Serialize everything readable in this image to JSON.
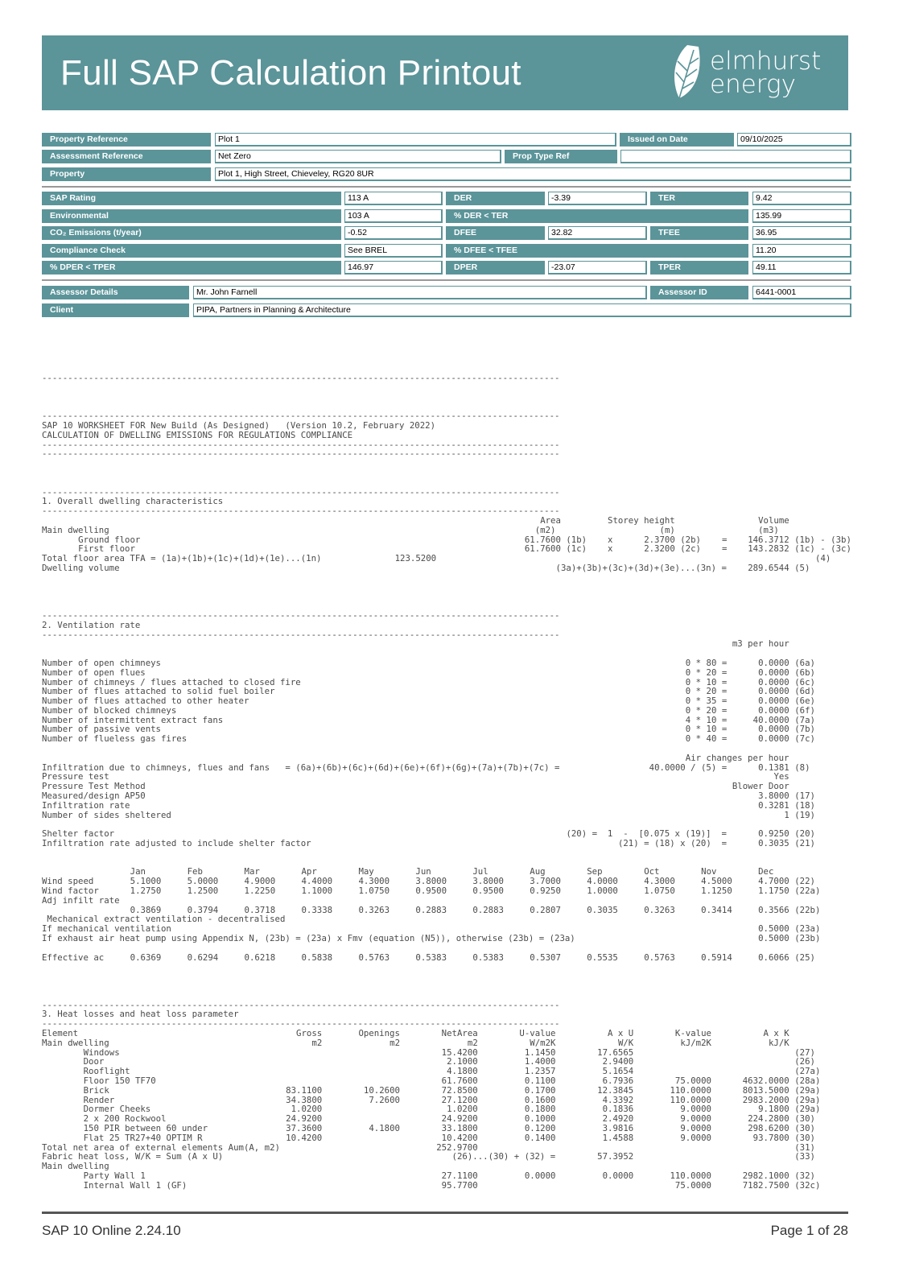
{
  "header": {
    "title": "Full SAP Calculation Printout",
    "logo_text_line1": "elmhurst",
    "logo_text_line2": "energy",
    "brand_color": "#5b9499"
  },
  "summary": {
    "property_reference_label": "Property Reference",
    "property_reference": "Plot 1",
    "issued_on_date_label": "Issued on Date",
    "issued_on_date": "09/10/2025",
    "assessment_reference_label": "Assessment Reference",
    "assessment_reference": "Net Zero",
    "prop_type_ref_label": "Prop Type Ref",
    "prop_type_ref": "",
    "property_label": "Property",
    "property": "Plot 1, High Street, Chieveley, RG20 8UR",
    "sap_rating_label": "SAP Rating",
    "sap_rating": "113 A",
    "der_label": "DER",
    "der": "-3.39",
    "ter_label": "TER",
    "ter": "9.42",
    "environmental_label": "Environmental",
    "environmental": "103 A",
    "pct_der_ter_label": "% DER < TER",
    "pct_der_ter": "135.99",
    "co2_label": "CO₂ Emissions (t/year)",
    "co2": "-0.52",
    "dfee_label": "DFEE",
    "dfee": "32.82",
    "tfee_label": "TFEE",
    "tfee": "36.95",
    "compliance_label": "Compliance Check",
    "compliance": "See BREL",
    "pct_dfee_tfee_label": "% DFEE < TFEE",
    "pct_dfee_tfee": "11.20",
    "pct_dper_tper_label": "% DPER < TPER",
    "pct_dper_tper": "146.97",
    "dper_label": "DPER",
    "dper": "-23.07",
    "tper_label": "TPER",
    "tper": "49.11",
    "assessor_details_label": "Assessor Details",
    "assessor_details": "Mr. John Farnell",
    "assessor_id_label": "Assessor ID",
    "assessor_id": "6441-0001",
    "client_label": "Client",
    "client": "PIPA, Partners in Planning & Architecture"
  },
  "worksheet": {
    "lines": [
      "----------------------------------------------------------------------------------------------------",
      "",
      "",
      "",
      "----------------------------------------------------------------------------------------------------",
      "SAP 10 WORKSHEET FOR New Build (As Designed)   (Version 10.2, February 2022)",
      "CALCULATION OF DWELLING EMISSIONS FOR REGULATIONS COMPLIANCE",
      "----------------------------------------------------------------------------------------------------",
      "----------------------------------------------------------------------------------------------------",
      "",
      "",
      "",
      "----------------------------------------------------------------------------------------------------",
      "1. Overall dwelling characteristics",
      "----------------------------------------------------------------------------------------------------",
      {
        "layout": "dimh",
        "cells": [
          "",
          "Area",
          "Storey height",
          "Volume"
        ]
      },
      {
        "layout": "dimu",
        "cells": [
          "Main dwelling",
          "(m2)",
          "(m)",
          "(m3)"
        ]
      },
      {
        "layout": "dim",
        "cells": [
          "Ground floor",
          "61.7600 (1b)",
          "x",
          "2.3700 (2b)",
          "=",
          "146.3712 (1b) - (3b)"
        ]
      },
      {
        "layout": "dim",
        "cells": [
          "First floor",
          "61.7600 (1c)",
          "x",
          "2.3200 (2c)",
          "=",
          "143.2832 (1c) - (3c)"
        ]
      },
      {
        "layout": "tfa",
        "cells": [
          "Total floor area TFA = (1a)+(1b)+(1c)+(1d)+(1e)...(1n)",
          "123.5200",
          "(4)"
        ]
      },
      {
        "layout": "dv",
        "cells": [
          "Dwelling volume",
          "(3a)+(3b)+(3c)+(3d)+(3e)...(3n) =",
          "289.6544 (5)"
        ]
      },
      "",
      "",
      "",
      "",
      "----------------------------------------------------------------------------------------------------",
      "2. Ventilation rate",
      "----------------------------------------------------------------------------------------------------",
      {
        "layout": "vent",
        "cells": [
          "",
          "",
          "m3 per hour",
          ""
        ]
      },
      "",
      {
        "layout": "vent",
        "cells": [
          "Number of open chimneys",
          "0 * 80 =",
          "0.0000",
          "(6a)"
        ]
      },
      {
        "layout": "vent",
        "cells": [
          "Number of open flues",
          "0 * 20 =",
          "0.0000",
          "(6b)"
        ]
      },
      {
        "layout": "vent",
        "cells": [
          "Number of chimneys / flues attached to closed fire",
          "0 * 10 =",
          "0.0000",
          "(6c)"
        ]
      },
      {
        "layout": "vent",
        "cells": [
          "Number of flues attached to solid fuel boiler",
          "0 * 20 =",
          "0.0000",
          "(6d)"
        ]
      },
      {
        "layout": "vent",
        "cells": [
          "Number of flues attached to other heater",
          "0 * 35 =",
          "0.0000",
          "(6e)"
        ]
      },
      {
        "layout": "vent",
        "cells": [
          "Number of blocked chimneys",
          "0 * 20 =",
          "0.0000",
          "(6f)"
        ]
      },
      {
        "layout": "vent",
        "cells": [
          "Number of intermittent extract fans",
          "4 * 10 =",
          "40.0000",
          "(7a)"
        ]
      },
      {
        "layout": "vent",
        "cells": [
          "Number of passive vents",
          "0 * 10 =",
          "0.0000",
          "(7b)"
        ]
      },
      {
        "layout": "vent",
        "cells": [
          "Number of flueless gas fires",
          "0 * 40 =",
          "0.0000",
          "(7c)"
        ]
      },
      "",
      {
        "layout": "vent",
        "cells": [
          "",
          "",
          "Air changes per hour",
          ""
        ]
      },
      {
        "layout": "vent",
        "cells": [
          "Infiltration due to chimneys, flues and fans   = (6a)+(6b)+(6c)+(6d)+(6e)+(6f)+(6g)+(7a)+(7b)+(7c) =",
          "40.0000 / (5) =",
          "0.1381",
          "(8)"
        ]
      },
      {
        "layout": "vent",
        "cells": [
          "Pressure test",
          "",
          "Yes",
          ""
        ]
      },
      {
        "layout": "vent",
        "cells": [
          "Pressure Test Method",
          "",
          "Blower Door",
          ""
        ]
      },
      {
        "layout": "vent",
        "cells": [
          "Measured/design AP50",
          "",
          "3.8000",
          "(17)"
        ]
      },
      {
        "layout": "vent",
        "cells": [
          "Infiltration rate",
          "",
          "0.3281",
          "(18)"
        ]
      },
      {
        "layout": "vent",
        "cells": [
          "Number of sides sheltered",
          "",
          "1",
          "(19)"
        ]
      },
      "",
      {
        "layout": "vent",
        "cells": [
          "Shelter factor",
          "(20) =  1  -  [0.075 x (19)]  =",
          "0.9250",
          "(20)"
        ]
      },
      {
        "layout": "vent",
        "cells": [
          "Infiltration rate adjusted to include shelter factor",
          "(21) = (18) x (20)  =",
          "0.3035",
          "(21)"
        ]
      },
      "",
      "",
      {
        "layout": "month",
        "cells": [
          "",
          "Jan",
          "Feb",
          "Mar",
          "Apr",
          "May",
          "Jun",
          "Jul",
          "Aug",
          "Sep",
          "Oct",
          "Nov",
          "Dec",
          ""
        ]
      },
      {
        "layout": "month",
        "cells": [
          "Wind speed",
          "5.1000",
          "5.0000",
          "4.9000",
          "4.4000",
          "4.3000",
          "3.8000",
          "3.8000",
          "3.7000",
          "4.0000",
          "4.3000",
          "4.5000",
          "4.7000",
          "(22)"
        ]
      },
      {
        "layout": "month",
        "cells": [
          "Wind factor",
          "1.2750",
          "1.2500",
          "1.2250",
          "1.1000",
          "1.0750",
          "0.9500",
          "0.9500",
          "0.9250",
          "1.0000",
          "1.0750",
          "1.1250",
          "1.1750",
          "(22a)"
        ]
      },
      "Adj infilt rate",
      {
        "layout": "month",
        "cells": [
          "",
          "0.3869",
          "0.3794",
          "0.3718",
          "0.3338",
          "0.3263",
          "0.2883",
          "0.2883",
          "0.2807",
          "0.3035",
          "0.3263",
          "0.3414",
          "0.3566",
          "(22b)"
        ]
      },
      " Mechanical extract ventilation - decentralised",
      {
        "layout": "vent",
        "cells": [
          "If mechanical ventilation",
          "",
          "0.5000",
          "(23a)"
        ]
      },
      {
        "layout": "vent",
        "cells": [
          "If exhaust air heat pump using Appendix N, (23b) = (23a) x Fmv (equation (N5)), otherwise (23b) = (23a)",
          "",
          "0.5000",
          "(23b)"
        ]
      },
      "",
      {
        "layout": "month",
        "cells": [
          "Effective ac",
          "0.6369",
          "0.6294",
          "0.6218",
          "0.5838",
          "0.5763",
          "0.5383",
          "0.5383",
          "0.5307",
          "0.5535",
          "0.5763",
          "0.5914",
          "0.6066",
          "(25)"
        ]
      },
      "",
      "",
      "",
      "",
      "----------------------------------------------------------------------------------------------------",
      "3. Heat losses and heat loss parameter",
      "----------------------------------------------------------------------------------------------------",
      {
        "layout": "heat",
        "cells": [
          "Element",
          "Gross",
          "Openings",
          "NetArea",
          "U-value",
          "A x U",
          "K-value",
          "A x K",
          ""
        ]
      },
      {
        "layout": "heat",
        "cells": [
          "Main dwelling",
          "m2",
          "m2",
          "m2",
          "W/m2K",
          "W/K",
          "kJ/m2K",
          "kJ/K",
          ""
        ]
      },
      {
        "layout": "heati",
        "cells": [
          "Windows",
          "",
          "",
          "15.4200",
          "1.1450",
          "17.6565",
          "",
          "",
          "(27)"
        ]
      },
      {
        "layout": "heati",
        "cells": [
          "Door",
          "",
          "",
          "2.1000",
          "1.4000",
          "2.9400",
          "",
          "",
          "(26)"
        ]
      },
      {
        "layout": "heati",
        "cells": [
          "Rooflight",
          "",
          "",
          "4.1800",
          "1.2357",
          "5.1654",
          "",
          "",
          "(27a)"
        ]
      },
      {
        "layout": "heati",
        "cells": [
          "Floor 150 TF70",
          "",
          "",
          "61.7600",
          "0.1100",
          "6.7936",
          "75.0000",
          "4632.0000",
          "(28a)"
        ]
      },
      {
        "layout": "heati",
        "cells": [
          "Brick",
          "83.1100",
          "10.2600",
          "72.8500",
          "0.1700",
          "12.3845",
          "110.0000",
          "8013.5000",
          "(29a)"
        ]
      },
      {
        "layout": "heati",
        "cells": [
          "Render",
          "34.3800",
          "7.2600",
          "27.1200",
          "0.1600",
          "4.3392",
          "110.0000",
          "2983.2000",
          "(29a)"
        ]
      },
      {
        "layout": "heati",
        "cells": [
          "Dormer Cheeks",
          "1.0200",
          "",
          "1.0200",
          "0.1800",
          "0.1836",
          "9.0000",
          "9.1800",
          "(29a)"
        ]
      },
      {
        "layout": "heati",
        "cells": [
          "2 x 200 Rockwool",
          "24.9200",
          "",
          "24.9200",
          "0.1000",
          "2.4920",
          "9.0000",
          "224.2800",
          "(30)"
        ]
      },
      {
        "layout": "heati",
        "cells": [
          "150 PIR between 60 under",
          "37.3600",
          "4.1800",
          "33.1800",
          "0.1200",
          "3.9816",
          "9.0000",
          "298.6200",
          "(30)"
        ]
      },
      {
        "layout": "heati",
        "cells": [
          "Flat 25 TR27+40 OPTIM R",
          "10.4200",
          "",
          "10.4200",
          "0.1400",
          "1.4588",
          "9.0000",
          "93.7800",
          "(30)"
        ]
      },
      {
        "layout": "heat",
        "cells": [
          "Total net area of external elements Aum(A, m2)",
          "",
          "",
          "252.9700",
          "",
          "",
          "",
          "",
          "(31)"
        ]
      },
      {
        "layout": "heat",
        "cells": [
          "Fabric heat loss, W/K = Sum (A x U)",
          "",
          "",
          "",
          "(26)...(30) + (32) =",
          "57.3952",
          "",
          "",
          "(33)"
        ]
      },
      "Main dwelling",
      {
        "layout": "heati",
        "cells": [
          "Party Wall 1",
          "",
          "",
          "27.1100",
          "0.0000",
          "0.0000",
          "110.0000",
          "2982.1000",
          "(32)"
        ]
      },
      {
        "layout": "heati",
        "cells": [
          "Internal Wall 1 (GF)",
          "",
          "",
          "95.7700",
          "",
          "",
          "75.0000",
          "7182.7500",
          "(32c)"
        ]
      }
    ]
  },
  "footer": {
    "version": "SAP 10 Online 2.24.10",
    "page": "Page 1 of 28"
  }
}
